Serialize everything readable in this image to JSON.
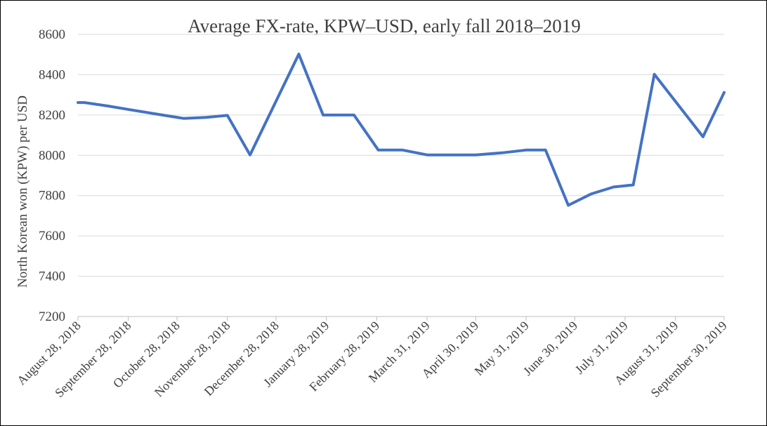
{
  "chart_data": {
    "type": "line",
    "title": "Average FX-rate, KPW–USD, early fall 2018–2019",
    "ylabel": "North Korean won (KPW) per USD",
    "xlabel": "",
    "ylim": [
      7200,
      8600
    ],
    "yticks": [
      7200,
      7400,
      7600,
      7800,
      8000,
      8200,
      8400,
      8600
    ],
    "ytick_labels": [
      "7200",
      "7400",
      "7600",
      "7800",
      "8000",
      "8200",
      "8400",
      "8600"
    ],
    "grid": true,
    "legend": "none",
    "x_tick_labels": [
      "August 28, 2018",
      "September 28, 2018",
      "October 28, 2018",
      "November 28, 2018",
      "December 28, 2018",
      "January 28, 2019",
      "February 28, 2019",
      "March 31, 2019",
      "April 30, 2019",
      "May 31, 2019",
      "June 30, 2019",
      "July 31, 2019",
      "August 31, 2019",
      "September 30, 2019"
    ],
    "series": [
      {
        "color": "#4472c4",
        "points": [
          {
            "x": "2018-08-28",
            "y": 8262
          },
          {
            "x": "2018-09-01",
            "y": 8262
          },
          {
            "x": "2018-09-15",
            "y": 8245
          },
          {
            "x": "2018-09-30",
            "y": 8225
          },
          {
            "x": "2018-10-15",
            "y": 8205
          },
          {
            "x": "2018-11-01",
            "y": 8183
          },
          {
            "x": "2018-11-15",
            "y": 8188
          },
          {
            "x": "2018-11-28",
            "y": 8198
          },
          {
            "x": "2018-12-12",
            "y": 8002
          },
          {
            "x": "2019-01-11",
            "y": 8502
          },
          {
            "x": "2019-01-26",
            "y": 8200
          },
          {
            "x": "2019-02-14",
            "y": 8200
          },
          {
            "x": "2019-03-01",
            "y": 8026
          },
          {
            "x": "2019-03-16",
            "y": 8026
          },
          {
            "x": "2019-03-31",
            "y": 8002
          },
          {
            "x": "2019-04-15",
            "y": 8002
          },
          {
            "x": "2019-04-30",
            "y": 8002
          },
          {
            "x": "2019-05-16",
            "y": 8012
          },
          {
            "x": "2019-05-31",
            "y": 8026
          },
          {
            "x": "2019-06-12",
            "y": 8026
          },
          {
            "x": "2019-06-26",
            "y": 7752
          },
          {
            "x": "2019-07-10",
            "y": 7808
          },
          {
            "x": "2019-07-24",
            "y": 7843
          },
          {
            "x": "2019-08-05",
            "y": 7853
          },
          {
            "x": "2019-08-18",
            "y": 8402
          },
          {
            "x": "2019-09-17",
            "y": 8092
          },
          {
            "x": "2019-09-30",
            "y": 8312
          }
        ]
      }
    ]
  }
}
